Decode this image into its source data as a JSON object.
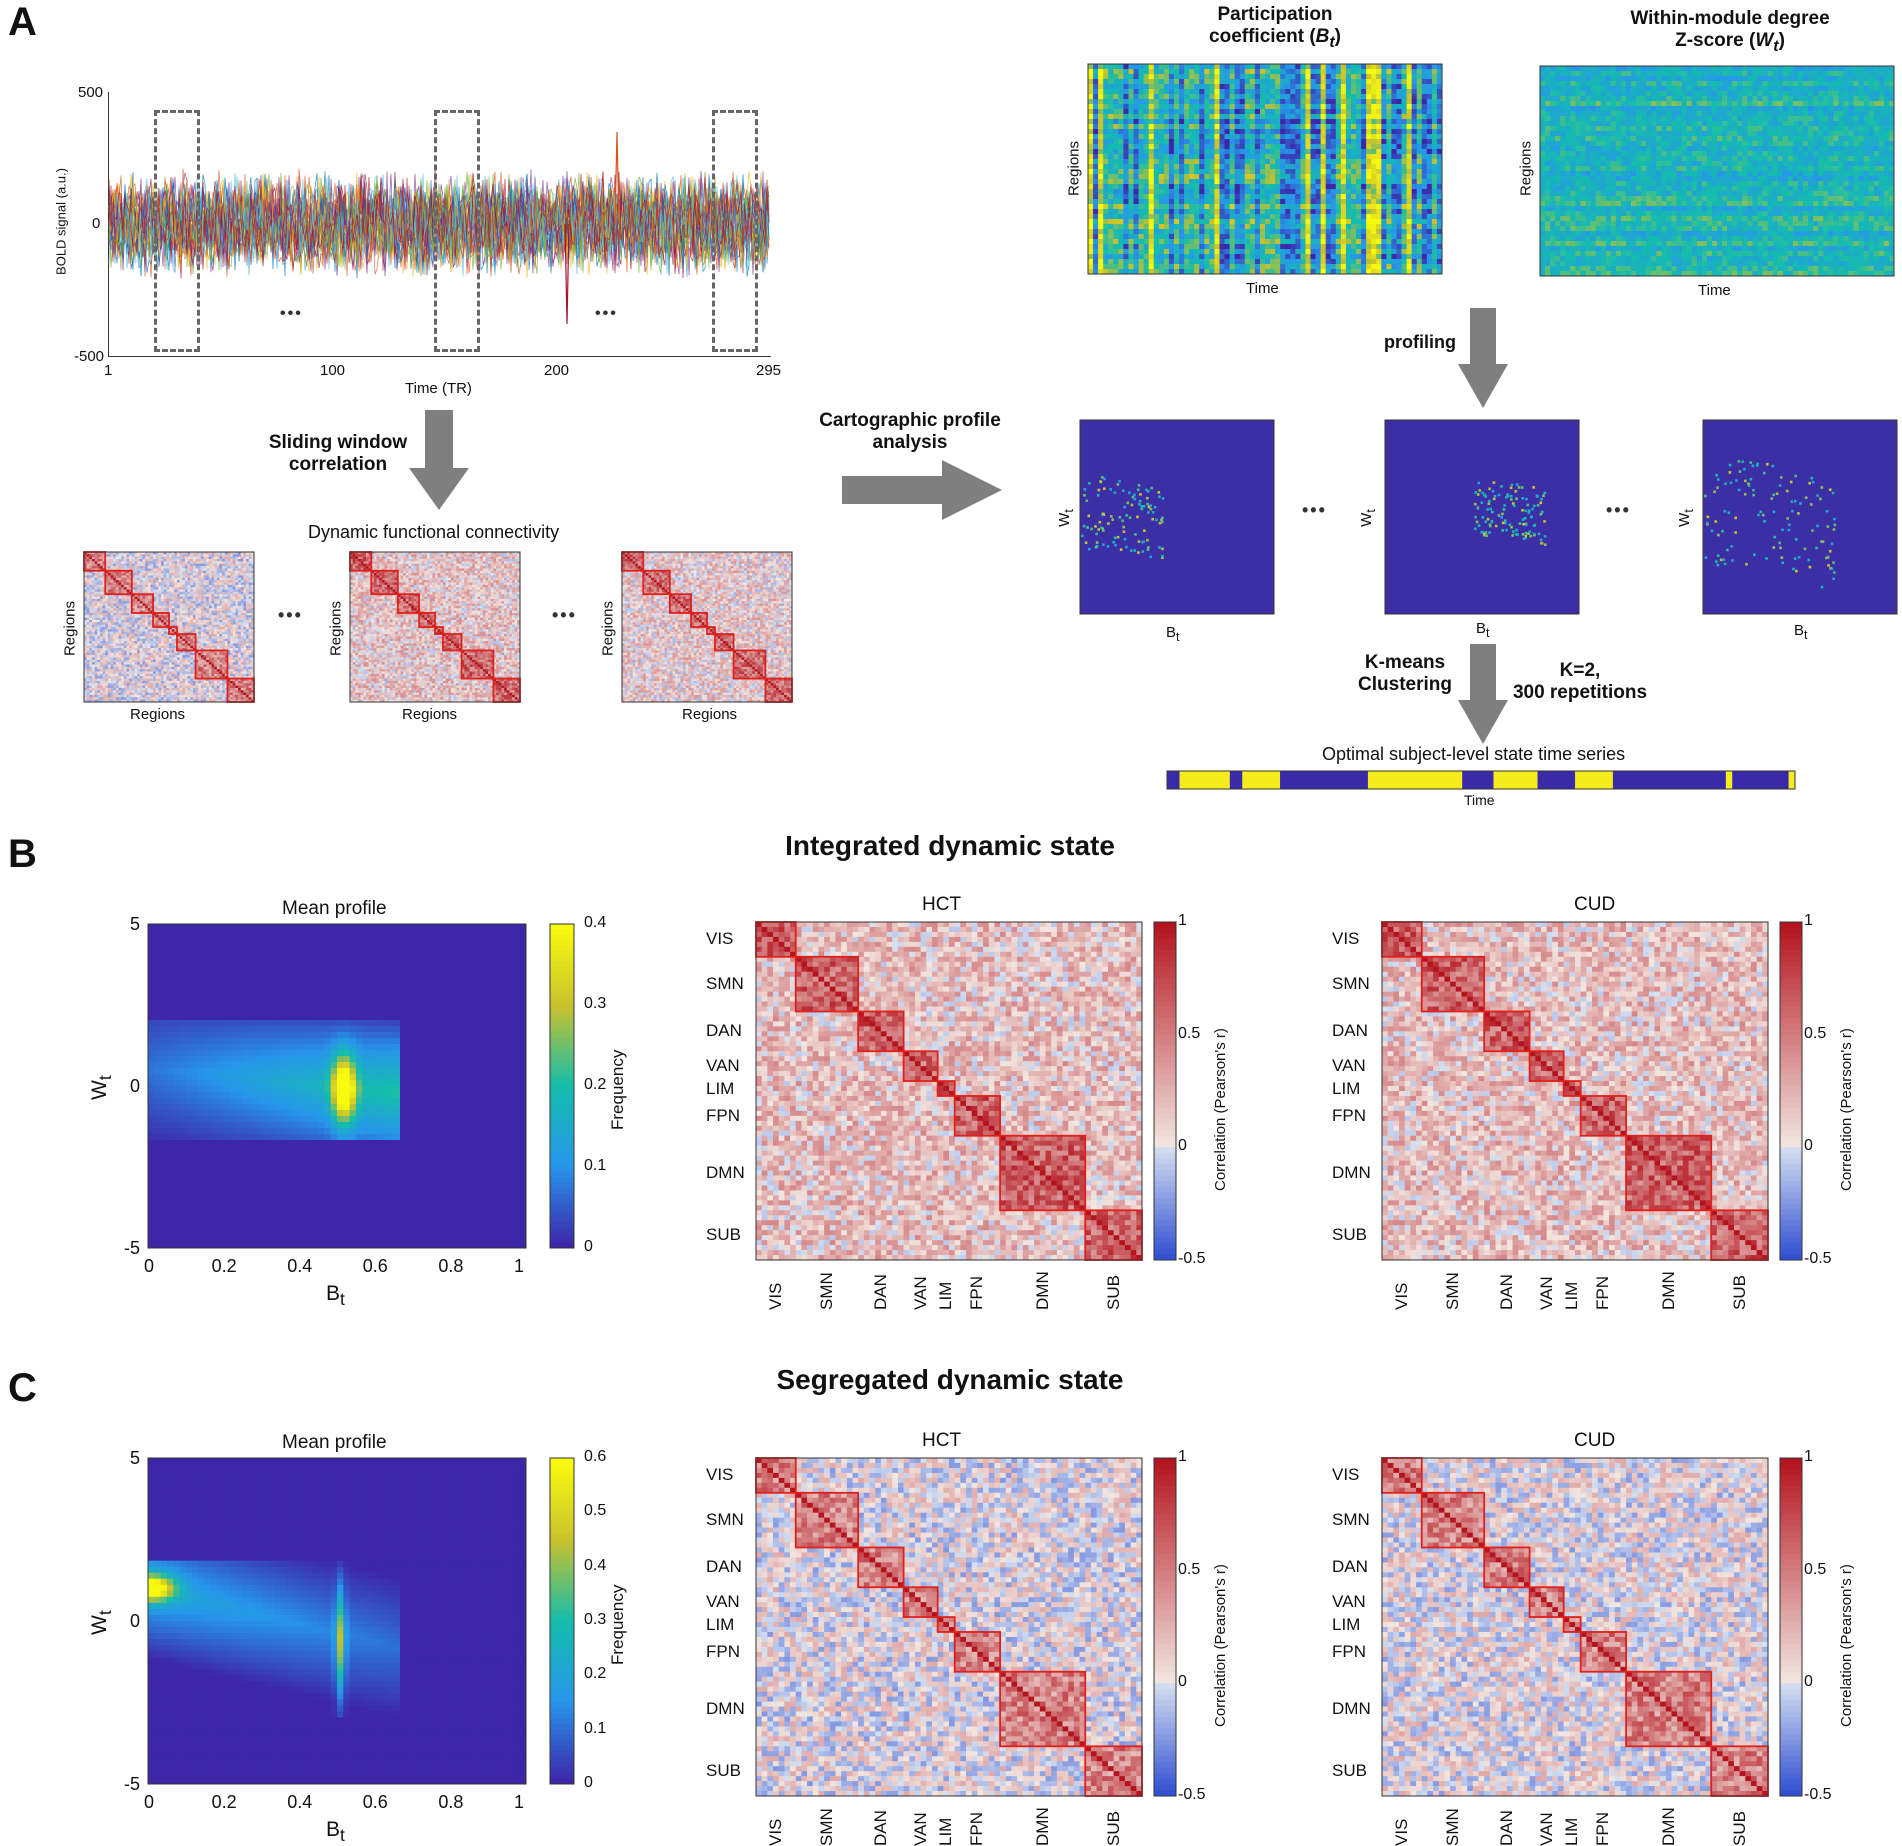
{
  "panel_labels": {
    "a": "A",
    "b": "B",
    "c": "C"
  },
  "panel_a": {
    "bold_plot": {
      "ylabel": "BOLD signal (a.u.)",
      "xlabel": "Time (TR)",
      "yticks": [
        "500",
        "0",
        "-500"
      ],
      "xticks": [
        "1",
        "100",
        "200",
        "295"
      ],
      "ellipsis": "•••"
    },
    "arrows": {
      "sliding": "Sliding window\ncorrelation",
      "cartographic": "Cartographic profile\nanalysis",
      "profiling": "profiling",
      "kmeans": "K-means\nClustering",
      "kparams": "K=2,\n300 repetitions"
    },
    "dfc": {
      "title": "Dynamic functional connectivity",
      "xlabel": "Regions",
      "ylabel": "Regions",
      "ellipsis": "•••"
    },
    "pc_map": {
      "title_line1": "Participation",
      "title_line2": "coefficient (",
      "title_sym": "B",
      "title_sub": "t",
      "title_end": ")",
      "xlabel": "Time",
      "ylabel": "Regions"
    },
    "wz_map": {
      "title_line1": "Within-module degree",
      "title_line2": "Z-score (",
      "title_sym": "W",
      "title_sub": "t",
      "title_end": ")",
      "xlabel": "Time",
      "ylabel": "Regions"
    },
    "profiles": {
      "xlabel": "B",
      "ylabel": "W",
      "sub": "t",
      "ellipsis": "•••"
    },
    "state_series": {
      "title": "Optimal subject-level state time series",
      "xlabel": "Time",
      "yellow": "#f5ec1c",
      "blue": "#3b2aa8"
    }
  },
  "panel_b": {
    "title": "Integrated dynamic state",
    "mean_profile": {
      "title": "Mean profile",
      "colorbar_label": "Frequency",
      "cbar_ticks": [
        "0.4",
        "0.3",
        "0.2",
        "0.1",
        "0"
      ]
    },
    "hct": {
      "title": "HCT"
    },
    "cud": {
      "title": "CUD"
    }
  },
  "panel_c": {
    "title": "Segregated dynamic state",
    "mean_profile": {
      "title": "Mean profile",
      "colorbar_label": "Frequency",
      "cbar_ticks": [
        "0.6",
        "0.5",
        "0.4",
        "0.3",
        "0.2",
        "0.1",
        "0"
      ]
    },
    "hct": {
      "title": "HCT"
    },
    "cud": {
      "title": "CUD"
    }
  },
  "profile_axes": {
    "xticks": [
      "0",
      "0.2",
      "0.4",
      "0.6",
      "0.8",
      "1"
    ],
    "yticks": [
      "5",
      "0",
      "-5"
    ],
    "xlabel": "B",
    "ylabel": "W",
    "sub": "t"
  },
  "corr_colorbar": {
    "label": "Correlation (Pearson's r)",
    "ticks": [
      "1",
      "0.5",
      "0",
      "-0.5"
    ]
  },
  "networks": [
    "VIS",
    "SMN",
    "DAN",
    "VAN",
    "LIM",
    "FPN",
    "DMN",
    "SUB"
  ],
  "colors": {
    "heat_red": "#c0392b",
    "heat_blue": "#3b5bd6",
    "parula_dark": "#3c2fa6",
    "parula_yellow": "#f9e720",
    "module_box": "#e0201a",
    "arrow": "#7f7f7f"
  }
}
